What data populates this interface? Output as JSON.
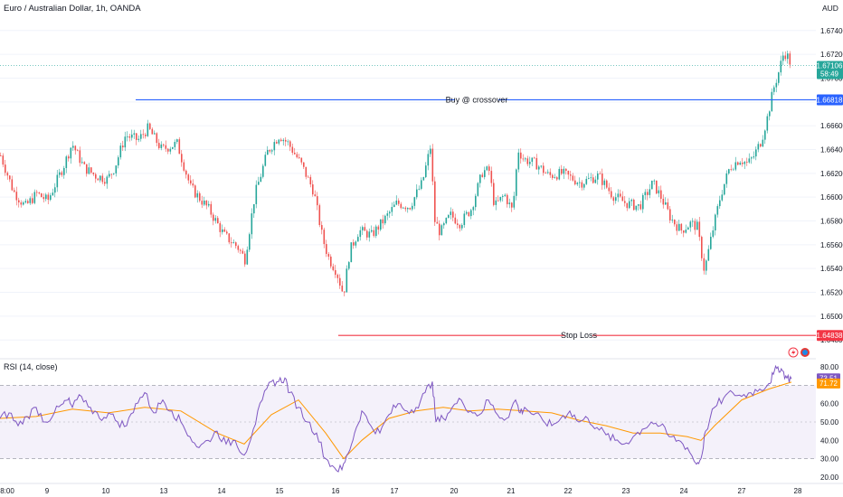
{
  "header": {
    "symbol_title": "Euro / Australian Dollar, 1h, OANDA",
    "currency": "AUD"
  },
  "colors": {
    "up": "#26a69a",
    "down": "#ef5350",
    "buy_line": "#2962ff",
    "stop_line": "#f23645",
    "rsi_line": "#7e57c2",
    "rsi_ma": "#ff9800",
    "rsi_band": "#ede7f6",
    "grid": "#f0f3fa",
    "text": "#131722",
    "axis_text": "#131722"
  },
  "annotations": {
    "buy_label": "Buy @ crossover",
    "stop_label": "Stop Loss",
    "buy_price": "1.66818",
    "stop_price": "1.64838",
    "last_price": "1.67106",
    "last_countdown": "58:49"
  },
  "rsi_panel": {
    "title": "RSI (14, close)",
    "rsi_value": "73.51",
    "ma_value": "71.72"
  },
  "chart_data": [
    {
      "type": "candlestick",
      "title": "Euro / Australian Dollar, 1h, OANDA",
      "ylabel": "AUD",
      "x_tick_labels": [
        "8:00",
        "9",
        "10",
        "13",
        "14",
        "15",
        "16",
        "17",
        "20",
        "21",
        "22",
        "23",
        "24",
        "27",
        "28"
      ],
      "y_tick_labels": [
        "1.67400",
        "1.67200",
        "1.67000",
        "1.66800",
        "1.66600",
        "1.66400",
        "1.66200",
        "1.66000",
        "1.65800",
        "1.65600",
        "1.65400",
        "1.65200",
        "1.65000",
        "1.64800"
      ],
      "ylim": [
        1.6468,
        1.6752
      ],
      "horizontal_lines": [
        {
          "label": "Buy @ crossover",
          "value": 1.66818
        },
        {
          "label": "Stop Loss",
          "value": 1.64838
        }
      ],
      "close_anchors": {
        "x": [
          0,
          14,
          27,
          40,
          52,
          70,
          79,
          92,
          105,
          118,
          126,
          138,
          152,
          163,
          178,
          195,
          210,
          230,
          247,
          262,
          270,
          281,
          295,
          308,
          318,
          332,
          346,
          356,
          363,
          371,
          379,
          386,
          396,
          410,
          425,
          438,
          452,
          466,
          475,
          480,
          486,
          497,
          508,
          520,
          533,
          540,
          546,
          557,
          566,
          572,
          578,
          592,
          606,
          621,
          641,
          661,
          676,
          691,
          706,
          721,
          730,
          741,
          752,
          763,
          770,
          778,
          786,
          796,
          806,
          817,
          826,
          833,
          841,
          848,
          854,
          860,
          866,
          870,
          874
        ],
        "close": [
          1.6635,
          1.6605,
          1.6592,
          1.6603,
          1.6597,
          1.6627,
          1.6645,
          1.6625,
          1.6618,
          1.6615,
          1.6625,
          1.6652,
          1.6648,
          1.6658,
          1.664,
          1.6645,
          1.6608,
          1.659,
          1.6568,
          1.6558,
          1.6548,
          1.6602,
          1.6638,
          1.6652,
          1.6645,
          1.6628,
          1.6605,
          1.6565,
          1.6548,
          1.6538,
          1.6518,
          1.6555,
          1.6572,
          1.6568,
          1.6582,
          1.6595,
          1.6592,
          1.6612,
          1.6642,
          1.658,
          1.657,
          1.6585,
          1.6578,
          1.659,
          1.6622,
          1.6622,
          1.6592,
          1.6602,
          1.6588,
          1.664,
          1.6632,
          1.6628,
          1.6618,
          1.662,
          1.6612,
          1.6618,
          1.6602,
          1.6595,
          1.6592,
          1.6612,
          1.66,
          1.6582,
          1.6572,
          1.6578,
          1.6575,
          1.6538,
          1.6568,
          1.6602,
          1.6625,
          1.6632,
          1.6628,
          1.6635,
          1.6648,
          1.6668,
          1.669,
          1.6705,
          1.6722,
          1.6718,
          1.6711
        ]
      }
    },
    {
      "type": "line",
      "title": "RSI (14, close)",
      "y_tick_labels": [
        "80.00",
        "70.00",
        "60.00",
        "50.00",
        "40.00",
        "30.00",
        "20.00"
      ],
      "ylim": [
        18,
        83
      ],
      "bands": [
        30,
        50,
        70
      ],
      "series": [
        {
          "name": "RSI",
          "x": [
            0,
            10,
            20,
            30,
            40,
            50,
            60,
            70,
            75,
            80,
            90,
            100,
            110,
            120,
            130,
            140,
            150,
            160,
            170,
            180,
            190,
            200,
            210,
            220,
            230,
            240,
            250,
            260,
            270,
            280,
            290,
            300,
            308,
            315,
            320,
            330,
            340,
            350,
            360,
            370,
            378,
            385,
            392,
            400,
            410,
            420,
            430,
            440,
            450,
            460,
            470,
            478,
            482,
            490,
            500,
            510,
            520,
            530,
            540,
            550,
            560,
            570,
            575,
            580,
            590,
            600,
            610,
            620,
            630,
            640,
            650,
            660,
            670,
            680,
            690,
            700,
            710,
            720,
            730,
            740,
            750,
            760,
            770,
            775,
            780,
            790,
            800,
            810,
            820,
            830,
            840,
            850,
            855,
            860,
            865,
            870,
            875
          ],
          "values": [
            52,
            55,
            48,
            53,
            58,
            50,
            55,
            60,
            62,
            58,
            64,
            58,
            52,
            55,
            50,
            48,
            60,
            66,
            55,
            62,
            56,
            50,
            42,
            36,
            40,
            45,
            38,
            40,
            32,
            46,
            62,
            72,
            72,
            74,
            66,
            58,
            50,
            44,
            30,
            25,
            24,
            33,
            44,
            56,
            48,
            44,
            54,
            60,
            56,
            58,
            66,
            72,
            50,
            52,
            58,
            62,
            56,
            54,
            62,
            54,
            52,
            62,
            55,
            58,
            54,
            51,
            48,
            52,
            56,
            50,
            52,
            47,
            43,
            40,
            38,
            42,
            46,
            50,
            48,
            42,
            40,
            36,
            27,
            30,
            45,
            58,
            63,
            66,
            64,
            66,
            68,
            71,
            76,
            80,
            78,
            74,
            73.51
          ]
        },
        {
          "name": "RSI-based MA",
          "x": [
            0,
            40,
            80,
            120,
            160,
            200,
            240,
            270,
            300,
            330,
            360,
            380,
            400,
            430,
            460,
            490,
            520,
            550,
            580,
            610,
            640,
            670,
            700,
            730,
            760,
            775,
            790,
            820,
            850,
            875
          ],
          "values": [
            52,
            53,
            57,
            55,
            58,
            56,
            44,
            38,
            54,
            62,
            44,
            30,
            40,
            52,
            56,
            58,
            56,
            57,
            56,
            55,
            51,
            48,
            44,
            44,
            42,
            40,
            48,
            62,
            68,
            71.72
          ]
        }
      ]
    }
  ]
}
